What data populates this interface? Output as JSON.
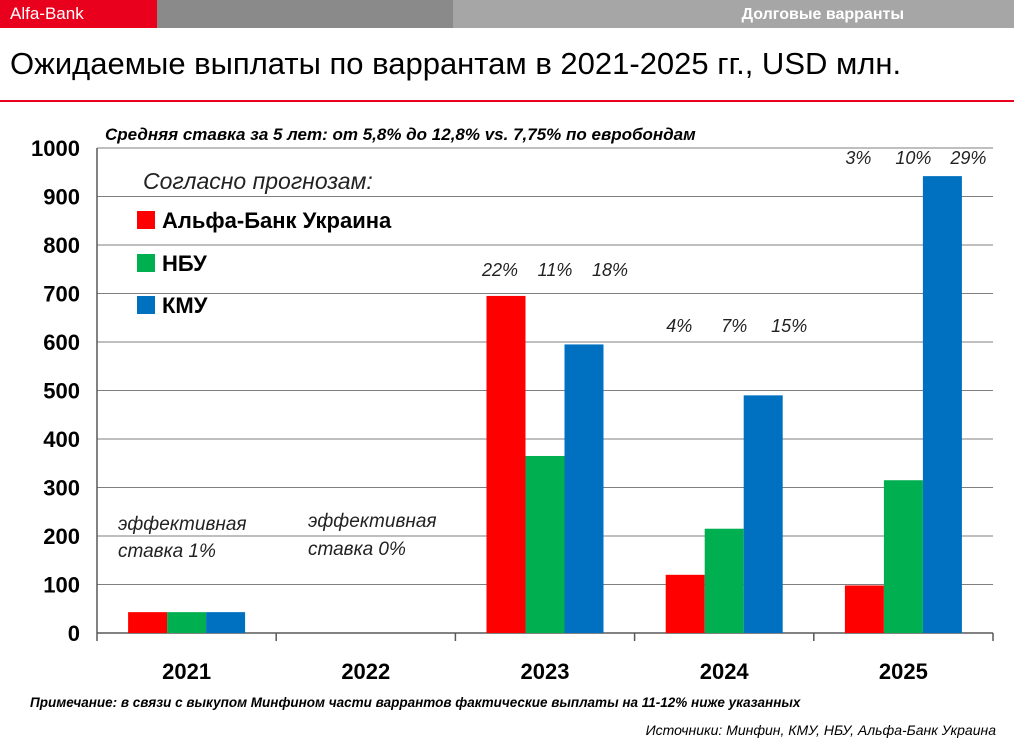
{
  "header": {
    "brand": "Alfa-Bank",
    "section": "Долговые варранты",
    "title": "Ожидаемые выплаты по варрантам в 2021-2025 гг., USD млн."
  },
  "footer": {
    "note": "Примечание: в связи с выкупом Минфином части варрантов фактические выплаты на 11-12% ниже указанных",
    "sources": "Источники: Минфин, КМУ, НБУ, Альфа-Банк Украина"
  },
  "colors": {
    "brand": "#e8001c",
    "alfa": "#ff0000",
    "nbu": "#00b050",
    "kmu": "#0070c0"
  },
  "chart_data": {
    "type": "bar",
    "title": "Ожидаемые выплаты по варрантам в 2021-2025 гг., USD млн.",
    "subtitle": "Средняя ставка за 5 лет: от 5,8% до 12,8% vs. 7,75% по евробондам",
    "legend_title": "Согласно прогнозам:",
    "legend_position": "top-left",
    "categories": [
      "2021",
      "2022",
      "2023",
      "2024",
      "2025"
    ],
    "ylim": [
      0,
      1000
    ],
    "yticks": [
      "0",
      "100",
      "200",
      "300",
      "400",
      "500",
      "600",
      "700",
      "800",
      "900",
      "1000"
    ],
    "grid": true,
    "series": [
      {
        "name": "Альфа-Банк Украина",
        "color": "#ff0000",
        "values": [
          43,
          0,
          695,
          120,
          98
        ]
      },
      {
        "name": "НБУ",
        "color": "#00b050",
        "values": [
          43,
          0,
          365,
          215,
          315
        ]
      },
      {
        "name": "КМУ",
        "color": "#0070c0",
        "values": [
          43,
          0,
          595,
          490,
          942
        ]
      }
    ],
    "rate_labels": [
      {
        "category": "2023",
        "values": [
          "22%",
          "11%",
          "18%"
        ]
      },
      {
        "category": "2024",
        "values": [
          "4%",
          "7%",
          "15%"
        ]
      },
      {
        "category": "2025",
        "values": [
          "3%",
          "10%",
          "29%"
        ]
      }
    ],
    "annotations": [
      {
        "category": "2021",
        "line1": "эффективная",
        "line2": "ставка 1%"
      },
      {
        "category": "2022",
        "line1": "эффективная",
        "line2": "ставка 0%"
      }
    ]
  }
}
